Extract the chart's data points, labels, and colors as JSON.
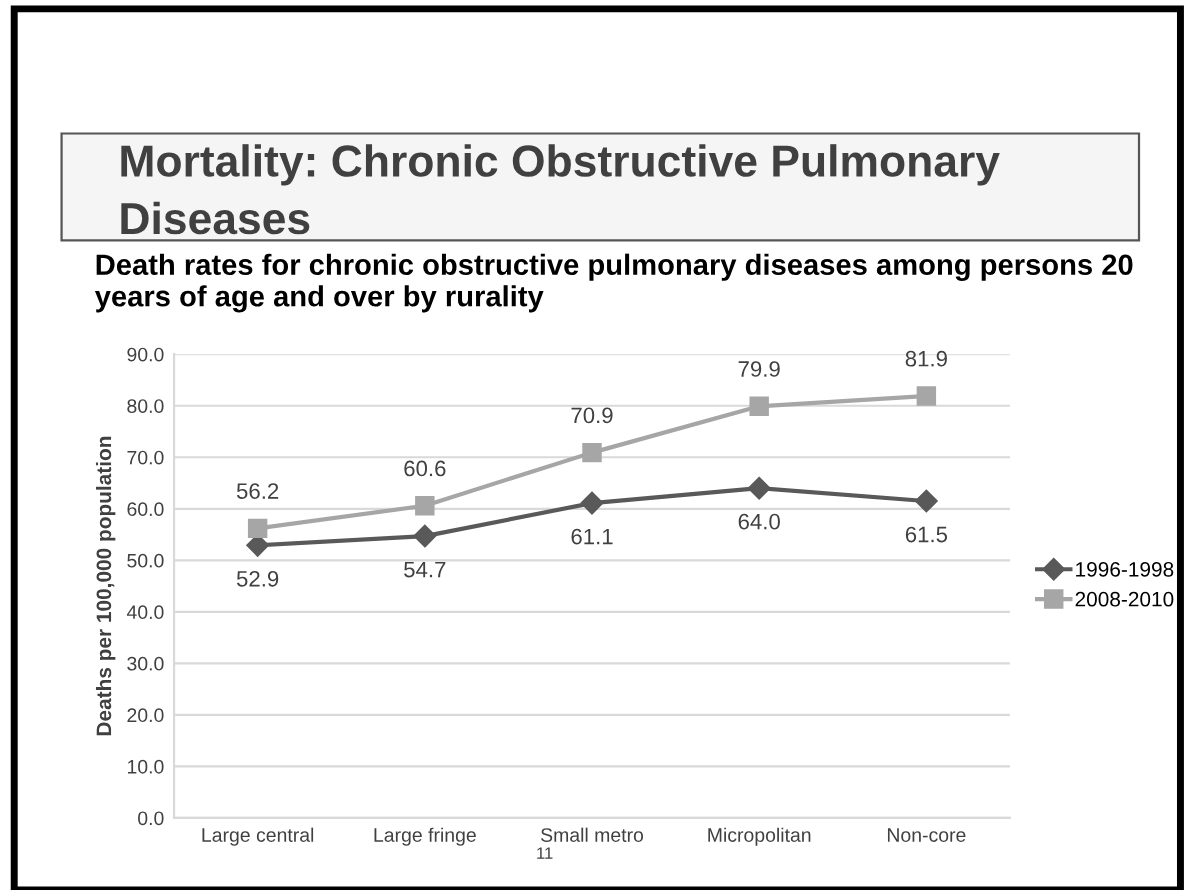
{
  "chart_data": {
    "type": "line",
    "title": "Mortality: Chronic Obstructive Pulmonary Diseases",
    "subtitle": "Death rates for chronic obstructive pulmonary diseases among persons 20 years of age and over by rurality",
    "ylabel": "Deaths per 100,000 population",
    "categories": [
      "Large central",
      "Large fringe",
      "Small metro",
      "Micropolitan",
      "Non-core"
    ],
    "series": [
      {
        "name": "1996-1998",
        "color": "#595959",
        "marker": "diamond",
        "values": [
          52.9,
          54.7,
          61.1,
          64.0,
          61.5
        ],
        "value_labels": [
          "52.9",
          "54.7",
          "61.1",
          "64.0",
          "61.5"
        ]
      },
      {
        "name": "2008-2010",
        "color": "#a6a6a6",
        "marker": "square",
        "values": [
          56.2,
          60.6,
          70.9,
          79.9,
          81.9
        ],
        "value_labels": [
          "56.2",
          "60.6",
          "70.9",
          "79.9",
          "81.9"
        ]
      }
    ],
    "ylim": [
      0,
      90
    ],
    "yticks": [
      {
        "value": 0,
        "label": "0.0"
      },
      {
        "value": 10,
        "label": "10.0"
      },
      {
        "value": 20,
        "label": "20.0"
      },
      {
        "value": 30,
        "label": "30.0"
      },
      {
        "value": 40,
        "label": "40.0"
      },
      {
        "value": 50,
        "label": "50.0"
      },
      {
        "value": 60,
        "label": "60.0"
      },
      {
        "value": 70,
        "label": "70.0"
      },
      {
        "value": 80,
        "label": "80.0"
      },
      {
        "value": 90,
        "label": "90.0"
      }
    ],
    "grid": "y",
    "legend": "right",
    "annotations": [
      "11"
    ]
  }
}
